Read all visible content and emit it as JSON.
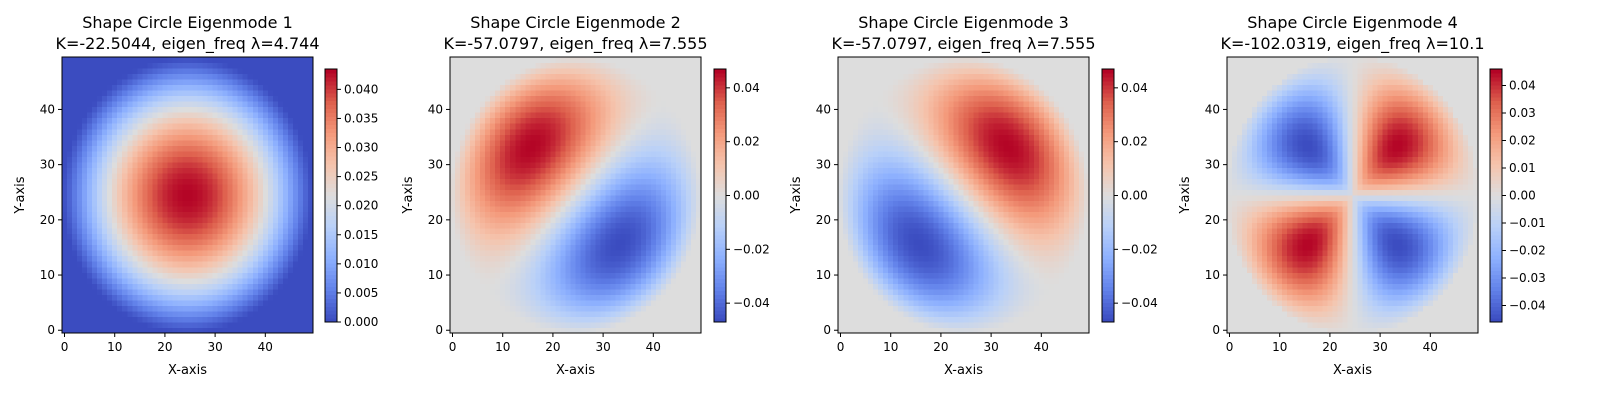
{
  "chart_data": [
    {
      "type": "heatmap",
      "title_line1": "Shape Circle Eigenmode 1",
      "title_line2": "K=-22.5044, eigen_freq λ=4.744",
      "xlabel": "X-axis",
      "ylabel": "Y-axis",
      "grid_size": 50,
      "xlim": [
        0,
        49
      ],
      "ylim": [
        0,
        49
      ],
      "xticks": [
        0,
        10,
        20,
        30,
        40
      ],
      "yticks": [
        0,
        10,
        20,
        30,
        40
      ],
      "mode": "radial",
      "colorbar": {
        "vmin": 0.0,
        "vmax": 0.0435,
        "ticks": [
          0.0,
          0.005,
          0.01,
          0.015,
          0.02,
          0.025,
          0.03,
          0.035,
          0.04
        ],
        "tick_labels": [
          "0.000",
          "0.005",
          "0.010",
          "0.015",
          "0.020",
          "0.025",
          "0.030",
          "0.035",
          "0.040"
        ]
      },
      "colormap": "coolwarm"
    },
    {
      "type": "heatmap",
      "title_line1": "Shape Circle Eigenmode 2",
      "title_line2": "K=-57.0797, eigen_freq λ=7.555",
      "xlabel": "X-axis",
      "ylabel": "Y-axis",
      "grid_size": 50,
      "xlim": [
        0,
        49
      ],
      "ylim": [
        0,
        49
      ],
      "xticks": [
        0,
        10,
        20,
        30,
        40
      ],
      "yticks": [
        0,
        10,
        20,
        30,
        40
      ],
      "mode": "dipole-anti",
      "colorbar": {
        "vmin": -0.047,
        "vmax": 0.047,
        "ticks": [
          -0.04,
          -0.02,
          0.0,
          0.02,
          0.04
        ],
        "tick_labels": [
          "−0.04",
          "−0.02",
          "0.00",
          "0.02",
          "0.04"
        ]
      },
      "colormap": "coolwarm"
    },
    {
      "type": "heatmap",
      "title_line1": "Shape Circle Eigenmode 3",
      "title_line2": "K=-57.0797, eigen_freq λ=7.555",
      "xlabel": "X-axis",
      "ylabel": "Y-axis",
      "grid_size": 50,
      "xlim": [
        0,
        49
      ],
      "ylim": [
        0,
        49
      ],
      "xticks": [
        0,
        10,
        20,
        30,
        40
      ],
      "yticks": [
        0,
        10,
        20,
        30,
        40
      ],
      "mode": "dipole-diag",
      "colorbar": {
        "vmin": -0.047,
        "vmax": 0.047,
        "ticks": [
          -0.04,
          -0.02,
          0.0,
          0.02,
          0.04
        ],
        "tick_labels": [
          "−0.04",
          "−0.02",
          "0.00",
          "0.02",
          "0.04"
        ]
      },
      "colormap": "coolwarm"
    },
    {
      "type": "heatmap",
      "title_line1": "Shape Circle Eigenmode 4",
      "title_line2": "K=-102.0319, eigen_freq λ=10.1",
      "xlabel": "X-axis",
      "ylabel": "Y-axis",
      "grid_size": 50,
      "xlim": [
        0,
        49
      ],
      "ylim": [
        0,
        49
      ],
      "xticks": [
        0,
        10,
        20,
        30,
        40
      ],
      "yticks": [
        0,
        10,
        20,
        30,
        40
      ],
      "mode": "quadrupole",
      "colorbar": {
        "vmin": -0.046,
        "vmax": 0.046,
        "ticks": [
          -0.04,
          -0.03,
          -0.02,
          -0.01,
          0.0,
          0.01,
          0.02,
          0.03,
          0.04
        ],
        "tick_labels": [
          "−0.04",
          "−0.03",
          "−0.02",
          "−0.01",
          "0.00",
          "0.01",
          "0.02",
          "0.03",
          "0.04"
        ]
      },
      "colormap": "coolwarm"
    }
  ]
}
